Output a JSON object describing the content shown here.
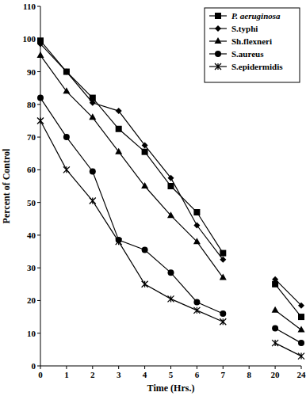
{
  "chart_data": {
    "type": "line",
    "x_label": "Time (Hrs.)",
    "y_label": "Percent of Control",
    "categories": [
      "0",
      "1",
      "2",
      "3",
      "4",
      "5",
      "6",
      "7",
      "8",
      "20",
      "24"
    ],
    "ylim": [
      0,
      110
    ],
    "yticks": [
      0,
      10,
      20,
      30,
      40,
      50,
      60,
      70,
      80,
      90,
      100,
      110
    ],
    "grid": false,
    "legend": "upper-right",
    "series": [
      {
        "name": "P. aeruginosa",
        "color": "#000000",
        "marker": "square",
        "line_style": "solid",
        "values": [
          99.5,
          90,
          82,
          72.5,
          65.5,
          55,
          47,
          34.5,
          null,
          25,
          15
        ]
      },
      {
        "name": "S.typhi",
        "color": "#000000",
        "marker": "diamond",
        "line_style": "solid",
        "values": [
          98.5,
          90,
          80.5,
          78,
          67.5,
          57.5,
          43,
          32.5,
          null,
          26.5,
          18.5
        ]
      },
      {
        "name": "Sh.flexneri",
        "color": "#000000",
        "marker": "triangle",
        "line_style": "solid",
        "values": [
          95,
          84,
          76,
          65.5,
          55,
          46,
          38,
          27,
          null,
          17,
          11
        ]
      },
      {
        "name": "S.aureus",
        "color": "#000000",
        "marker": "circle",
        "line_style": "solid",
        "values": [
          82,
          70,
          59.5,
          38.5,
          35.5,
          28.5,
          19.5,
          16,
          null,
          11.5,
          7
        ]
      },
      {
        "name": "S.epidermidis",
        "color": "#000000",
        "marker": "star",
        "line_style": "solid",
        "values": [
          75,
          60,
          50.5,
          38,
          25,
          20.5,
          17,
          13.5,
          null,
          7,
          3
        ]
      }
    ]
  }
}
